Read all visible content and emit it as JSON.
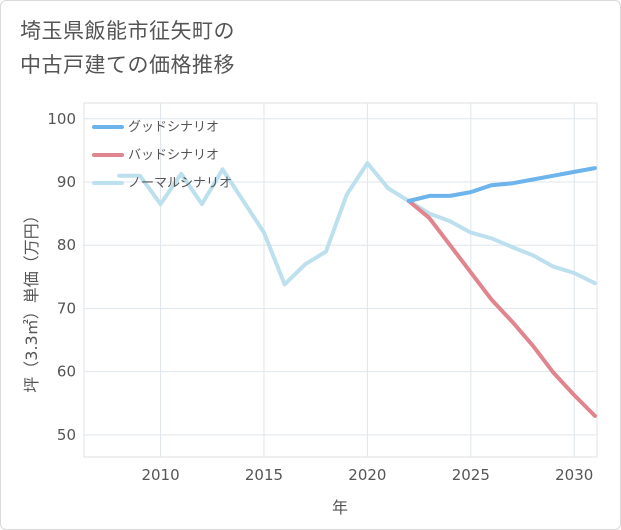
{
  "chart_data": {
    "type": "line",
    "title_line1": "埼玉県飯能市征矢町の",
    "title_line2": "中古戸建ての価格推移",
    "xlabel": "年",
    "ylabel": "坪（3.3㎡）単価（万円）",
    "xlim": [
      2006.3,
      2031.1
    ],
    "ylim": [
      46.5,
      102.5
    ],
    "xticks": [
      2010,
      2015,
      2020,
      2025,
      2030
    ],
    "yticks": [
      50,
      60,
      70,
      80,
      90,
      100
    ],
    "grid": true,
    "legend_position": "top-left",
    "series": [
      {
        "name": "グッドシナリオ",
        "color": "#6cb4eb",
        "x": [
          2022,
          2023,
          2024,
          2025,
          2026,
          2027,
          2028,
          2029,
          2030,
          2031
        ],
        "y": [
          87.0,
          87.8,
          87.8,
          88.4,
          89.5,
          89.8,
          90.4,
          91.0,
          91.6,
          92.2
        ]
      },
      {
        "name": "バッドシナリオ",
        "color": "#e0848e",
        "x": [
          2022,
          2023,
          2024,
          2025,
          2026,
          2027,
          2028,
          2029,
          2030,
          2031
        ],
        "y": [
          87.0,
          84.3,
          80.0,
          75.7,
          71.4,
          67.9,
          64.1,
          59.8,
          56.3,
          53.0
        ]
      },
      {
        "name": "ノーマルシナリオ",
        "color": "#bde0ee",
        "x": [
          2008,
          2009,
          2010,
          2011,
          2012,
          2013,
          2014,
          2015,
          2016,
          2017,
          2018,
          2019,
          2020,
          2021,
          2022,
          2023,
          2024,
          2025,
          2026,
          2027,
          2028,
          2029,
          2030,
          2031
        ],
        "y": [
          91.0,
          91.0,
          86.5,
          91.3,
          86.5,
          92.0,
          87.0,
          82.0,
          73.8,
          77.0,
          79.0,
          88.0,
          93.0,
          89.0,
          87.0,
          85.0,
          83.8,
          82.0,
          81.1,
          79.7,
          78.4,
          76.6,
          75.6,
          74.0
        ]
      }
    ]
  }
}
